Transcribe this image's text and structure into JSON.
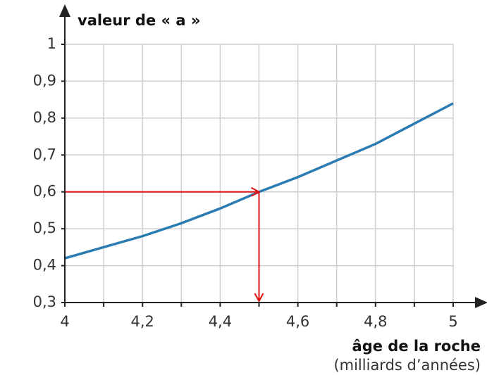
{
  "chart_data": {
    "type": "line",
    "ylabel": "valeur de « a »",
    "xlabel": "âge de la roche",
    "xlabel_unit": "(milliards d’années)",
    "x": [
      4,
      4.1,
      4.2,
      4.3,
      4.4,
      4.5,
      4.6,
      4.7,
      4.8,
      4.9,
      5
    ],
    "series": [
      {
        "color": "#2b7bb3",
        "values": [
          0.42,
          0.45,
          0.48,
          0.515,
          0.555,
          0.6,
          0.64,
          0.685,
          0.73,
          0.785,
          0.84
        ]
      }
    ],
    "xlim": [
      4,
      5
    ],
    "xticks": [
      4,
      {
        "value": 4.2,
        "label": "4,2"
      },
      {
        "value": 4.4,
        "label": "4,4"
      },
      {
        "value": 4.6,
        "label": "4,6"
      },
      {
        "value": 4.8,
        "label": "4,8"
      },
      5
    ],
    "xgrid": [
      4.1,
      4.3,
      4.5,
      4.7,
      4.9
    ],
    "ylim": [
      0.3,
      1
    ],
    "yticks": [
      {
        "value": 0.3,
        "label": "0,3"
      },
      {
        "value": 0.4,
        "label": "0,4"
      },
      {
        "value": 0.5,
        "label": "0,5"
      },
      {
        "value": 0.6,
        "label": "0,6"
      },
      {
        "value": 0.7,
        "label": "0,7"
      },
      {
        "value": 0.8,
        "label": "0,8"
      },
      {
        "value": 0.9,
        "label": "0,9"
      },
      1
    ],
    "grid": true,
    "reading": {
      "x": 4.5,
      "y": 0.6,
      "color": "#e01010"
    }
  }
}
